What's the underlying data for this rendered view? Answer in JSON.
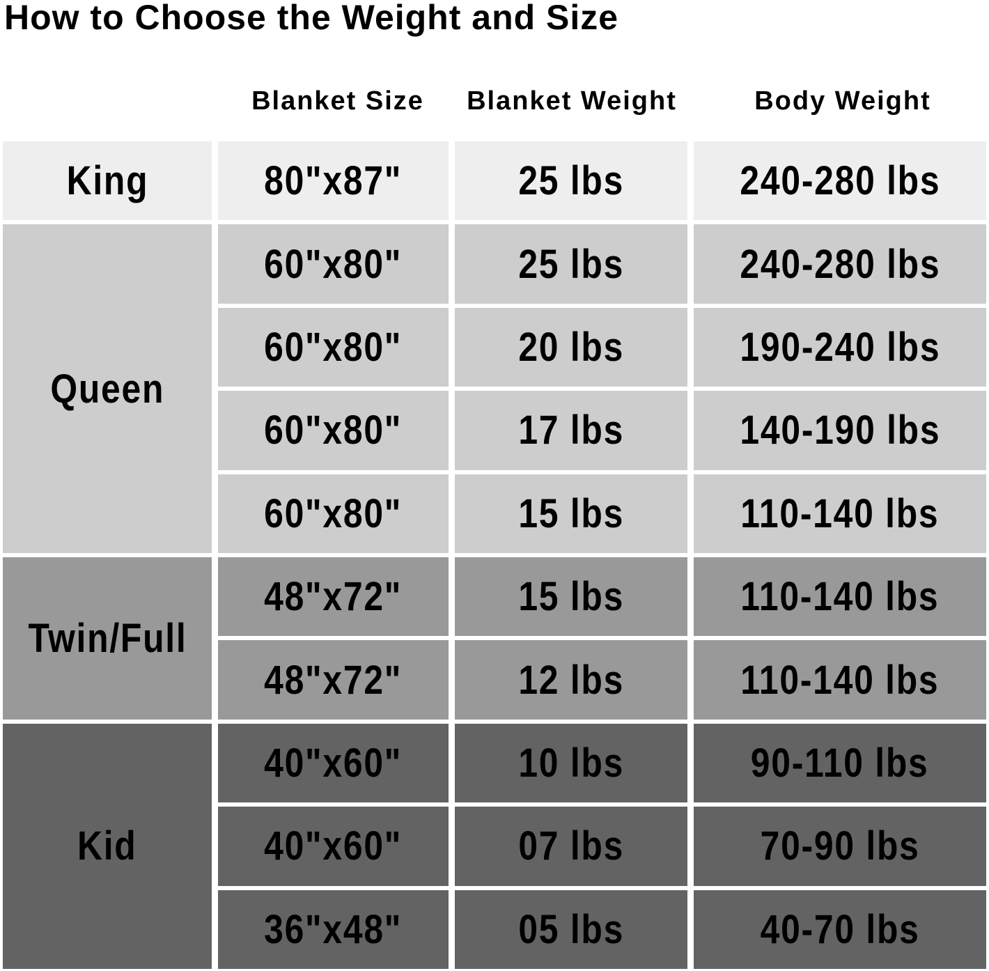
{
  "title": "How to Choose the Weight and Size",
  "headers": [
    "Blanket Size",
    "Blanket Weight",
    "Body Weight"
  ],
  "colors": {
    "King": "#eeeeee",
    "Queen": "#cdcdcd",
    "Twin/Full": "#999999",
    "Kid": "#636363"
  },
  "groups": [
    {
      "label": "King",
      "rows": [
        {
          "size": "80\"x87\"",
          "weight": "25 lbs",
          "body": "240-280 lbs"
        }
      ]
    },
    {
      "label": "Queen",
      "rows": [
        {
          "size": "60\"x80\"",
          "weight": "25 lbs",
          "body": "240-280 lbs"
        },
        {
          "size": "60\"x80\"",
          "weight": "20 lbs",
          "body": "190-240 lbs"
        },
        {
          "size": "60\"x80\"",
          "weight": "17 lbs",
          "body": "140-190 lbs"
        },
        {
          "size": "60\"x80\"",
          "weight": "15 lbs",
          "body": "110-140 lbs"
        }
      ]
    },
    {
      "label": "Twin/Full",
      "rows": [
        {
          "size": "48\"x72\"",
          "weight": "15 lbs",
          "body": "110-140 lbs"
        },
        {
          "size": "48\"x72\"",
          "weight": "12 lbs",
          "body": "110-140 lbs"
        }
      ]
    },
    {
      "label": "Kid",
      "rows": [
        {
          "size": "40\"x60\"",
          "weight": "10 lbs",
          "body": "90-110 lbs"
        },
        {
          "size": "40\"x60\"",
          "weight": "07 lbs",
          "body": "70-90 lbs"
        },
        {
          "size": "36\"x48\"",
          "weight": "05 lbs",
          "body": "40-70 lbs"
        }
      ]
    }
  ]
}
